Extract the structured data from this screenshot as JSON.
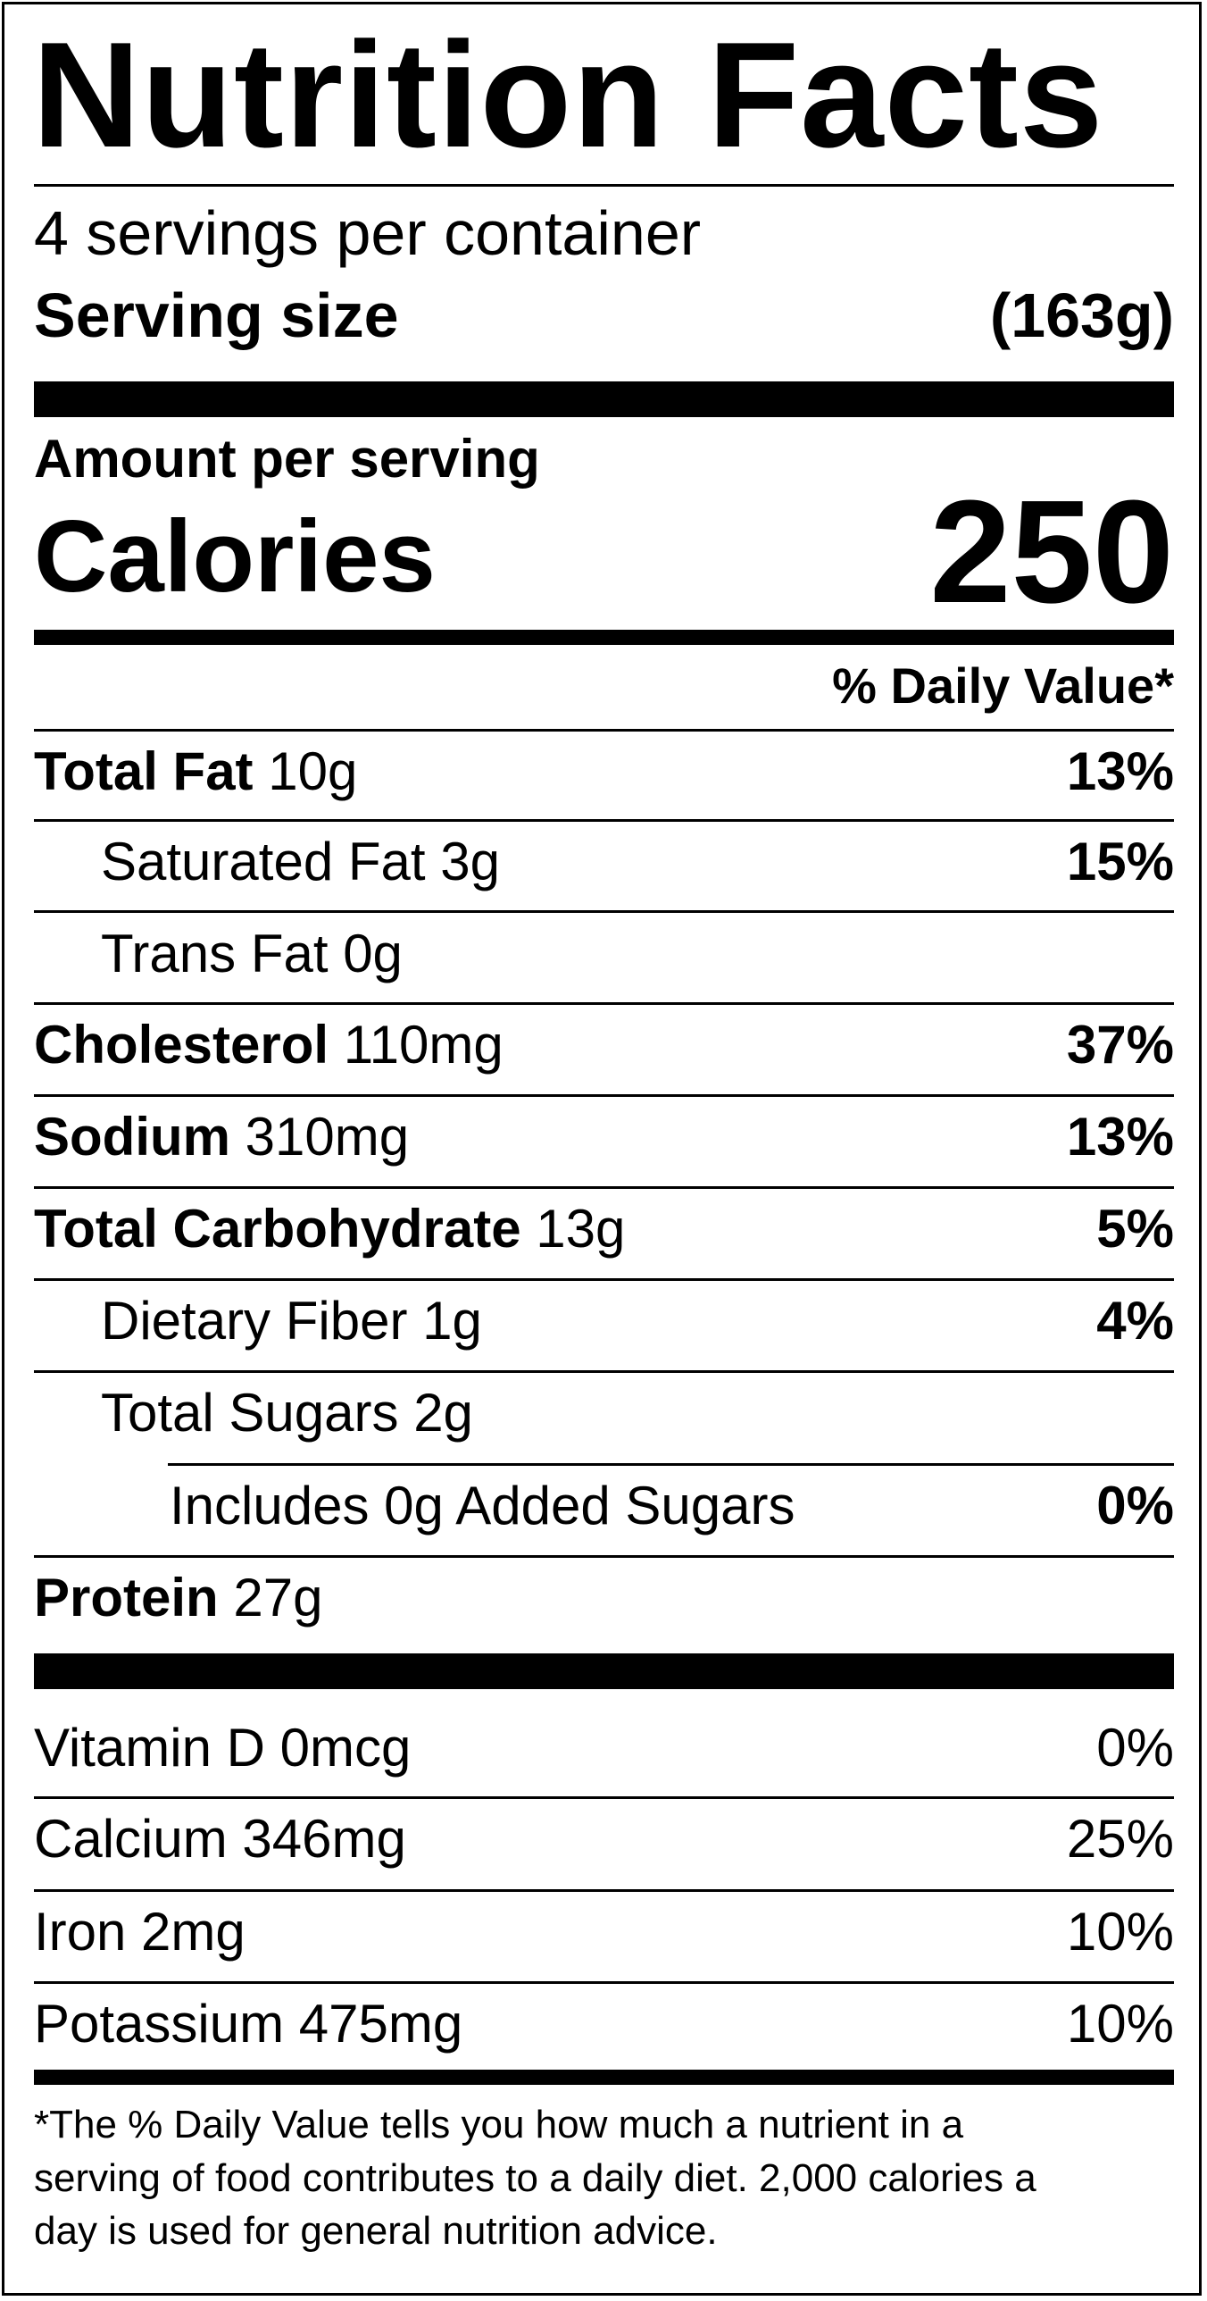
{
  "title": "Nutrition Facts",
  "servings_per_container": "4 servings per container",
  "serving_size": {
    "label": "Serving size",
    "value": "(163g)"
  },
  "amount_per_serving": "Amount per serving",
  "calories": {
    "label": "Calories",
    "value": "250"
  },
  "daily_value_header": "% Daily Value*",
  "nutrients": [
    {
      "name": "Total Fat",
      "amount": "10g",
      "dv": "13%"
    },
    {
      "name": "Saturated Fat",
      "amount": "3g",
      "dv": "15%"
    },
    {
      "name": "Trans Fat",
      "amount": "0g",
      "dv": ""
    },
    {
      "name": "Cholesterol",
      "amount": "110mg",
      "dv": "37%"
    },
    {
      "name": "Sodium",
      "amount": "310mg",
      "dv": "13%"
    },
    {
      "name": "Total Carbohydrate",
      "amount": "13g",
      "dv": "5%"
    },
    {
      "name": "Dietary Fiber",
      "amount": "1g",
      "dv": "4%"
    },
    {
      "name": "Total Sugars",
      "amount": "2g",
      "dv": ""
    },
    {
      "name": "Includes 0g Added Sugars",
      "amount": "",
      "dv": "0%"
    },
    {
      "name": "Protein",
      "amount": "27g",
      "dv": ""
    }
  ],
  "vitamins": [
    {
      "label": "Vitamin D 0mcg",
      "dv": "0%"
    },
    {
      "label": "Calcium 346mg",
      "dv": "25%"
    },
    {
      "label": "Iron 2mg",
      "dv": "10%"
    },
    {
      "label": "Potassium 475mg",
      "dv": "10%"
    }
  ],
  "footnote": {
    "line1": "*The % Daily Value tells you how much a nutrient in a",
    "line2": "serving of food contributes to a daily diet. 2,000 calories a",
    "line3": "day is used for general nutrition advice."
  }
}
